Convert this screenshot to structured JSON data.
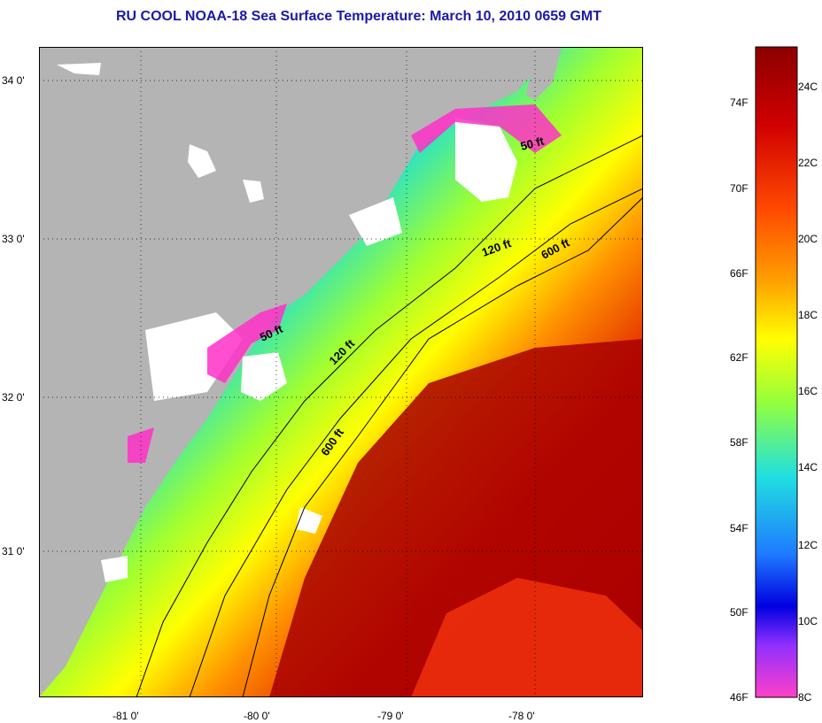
{
  "title": "RU COOL  NOAA-18  Sea Surface Temperature:  March 10, 2010 0659 GMT",
  "map": {
    "lat_labels": [
      "34 0'",
      "33 0'",
      "32 0'",
      "31 0'"
    ],
    "lon_labels": [
      "-81 0'",
      "-80 0'",
      "-79 0'",
      "-78 0'"
    ],
    "contours": [
      "50 ft",
      "50 ft",
      "120 ft",
      "120 ft",
      "600 ft",
      "600 ft"
    ],
    "colors": {
      "land": "#b4b4b4",
      "cloud": "#ffffff",
      "ocean_cold": "#1040ff",
      "ocean_warm": "#c80000"
    }
  },
  "colorbar": {
    "fahrenheit_labels": [
      "74F",
      "70F",
      "66F",
      "62F",
      "58F",
      "54F",
      "50F",
      "46F"
    ],
    "celsius_labels": [
      "24C",
      "22C",
      "20C",
      "18C",
      "16C",
      "14C",
      "12C",
      "10C",
      "8C"
    ]
  }
}
